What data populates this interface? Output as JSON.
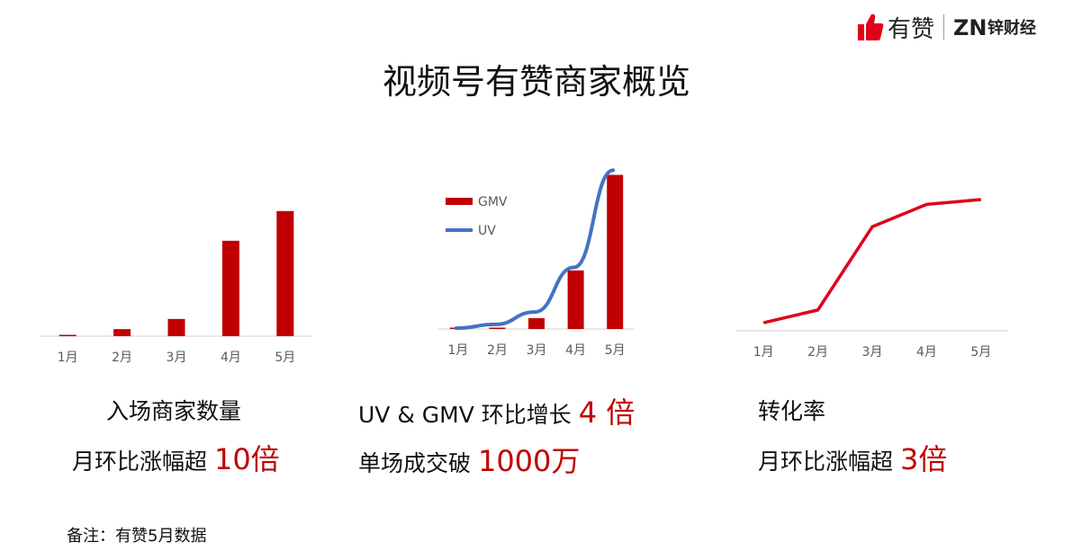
{
  "page": {
    "title": "视频号有赞商家概览",
    "footnote": "备注：有赞5月数据",
    "brand": {
      "youzan": "有赞",
      "zn": "锌财经",
      "zn_mark": "ZN"
    }
  },
  "colors": {
    "bar": "#c00000",
    "line_uv": "#4472c4",
    "line_conv": "#e0001a",
    "highlight": "#c00000"
  },
  "captions": [
    {
      "line1": "入场商家数量",
      "line2_prefix": "月环比涨幅超 ",
      "line2_hl": "10倍"
    },
    {
      "line1_prefix": "UV & GMV 环比增长 ",
      "line1_hl": "4 倍",
      "line2_prefix": "单场成交破 ",
      "line2_hl": "1000万"
    },
    {
      "line1": "转化率",
      "line2_prefix": "月环比涨幅超 ",
      "line2_hl": "3倍"
    }
  ],
  "chart_data": [
    {
      "type": "bar",
      "categories": [
        "1月",
        "2月",
        "3月",
        "4月",
        "5月"
      ],
      "values": [
        0.5,
        4.5,
        11,
        61,
        80
      ],
      "ylim": [
        0,
        100
      ]
    },
    {
      "type": "bar",
      "categories": [
        "1月",
        "2月",
        "3月",
        "4月",
        "5月"
      ],
      "series": [
        {
          "name": "GMV",
          "type": "bar",
          "values": [
            0.5,
            0.5,
            7,
            38,
            100
          ]
        },
        {
          "name": "UV",
          "type": "line",
          "values": [
            0.5,
            3,
            11,
            40,
            103
          ]
        }
      ],
      "legend": "top-left",
      "ylim": [
        0,
        105
      ]
    },
    {
      "type": "line",
      "categories": [
        "1月",
        "2月",
        "3月",
        "4月",
        "5月"
      ],
      "values": [
        5,
        13,
        65,
        79,
        82
      ],
      "ylim": [
        0,
        100
      ]
    }
  ]
}
